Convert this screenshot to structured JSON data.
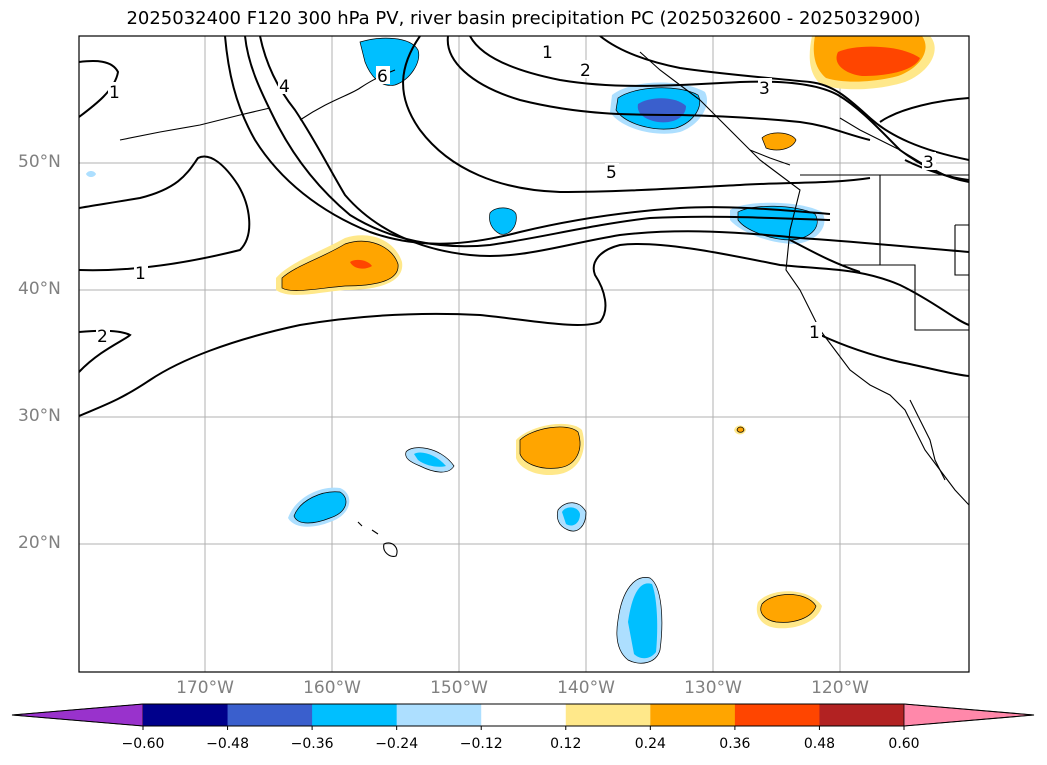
{
  "title": "2025032400 F120 300 hPa PV, river basin precipitation PC (2025032600 - 2025032900)",
  "lat_labels": [
    "50°N",
    "40°N",
    "30°N",
    "20°N"
  ],
  "lon_labels": [
    "170°W",
    "160°W",
    "150°W",
    "140°W",
    "130°W",
    "120°W"
  ],
  "contour_labels": [
    "1",
    "2",
    "3",
    "5",
    "1",
    "2",
    "1",
    "3",
    "4",
    "6",
    "1"
  ],
  "colorbar": {
    "ticks": [
      "−0.60",
      "−0.48",
      "−0.36",
      "−0.24",
      "−0.12",
      "0.12",
      "0.24",
      "0.36",
      "0.48",
      "0.60"
    ],
    "colors": [
      "#9932CC",
      "#00008B",
      "#3A5FCD",
      "#00BFFF",
      "#ADDFFF",
      "#FFFFFF",
      "#FFE88A",
      "#FFA500",
      "#FF4500",
      "#B22222",
      "#FF88AA"
    ]
  }
}
